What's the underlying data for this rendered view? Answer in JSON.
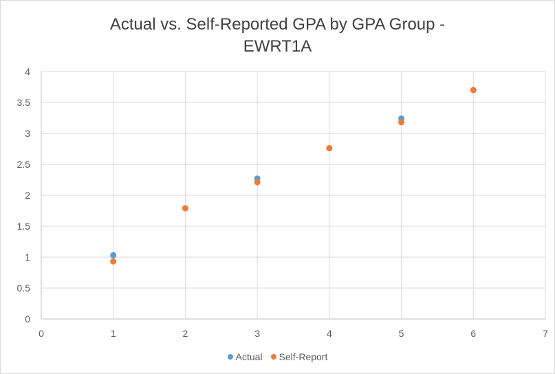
{
  "chart_data": {
    "type": "scatter",
    "title_line1": "Actual vs. Self-Reported GPA by GPA Group -",
    "title_line2": "EWRT1A",
    "xlabel": "",
    "ylabel": "",
    "xlim": [
      0,
      7
    ],
    "ylim": [
      0,
      4
    ],
    "x_ticks": [
      "0",
      "1",
      "2",
      "3",
      "4",
      "5",
      "6",
      "7"
    ],
    "y_ticks": [
      "0",
      "0.5",
      "1",
      "1.5",
      "2",
      "2.5",
      "3",
      "3.5",
      "4"
    ],
    "grid": true,
    "legend_position": "bottom",
    "series": [
      {
        "name": "Actual",
        "color": "#5b9bd5",
        "x": [
          1,
          2,
          3,
          4,
          5,
          6
        ],
        "y": [
          1.03,
          1.79,
          2.27,
          2.76,
          3.24,
          3.7
        ]
      },
      {
        "name": "Self-Report",
        "color": "#ed7d31",
        "x": [
          1,
          2,
          3,
          4,
          5,
          6
        ],
        "y": [
          0.93,
          1.79,
          2.21,
          2.76,
          3.18,
          3.7
        ]
      }
    ]
  }
}
